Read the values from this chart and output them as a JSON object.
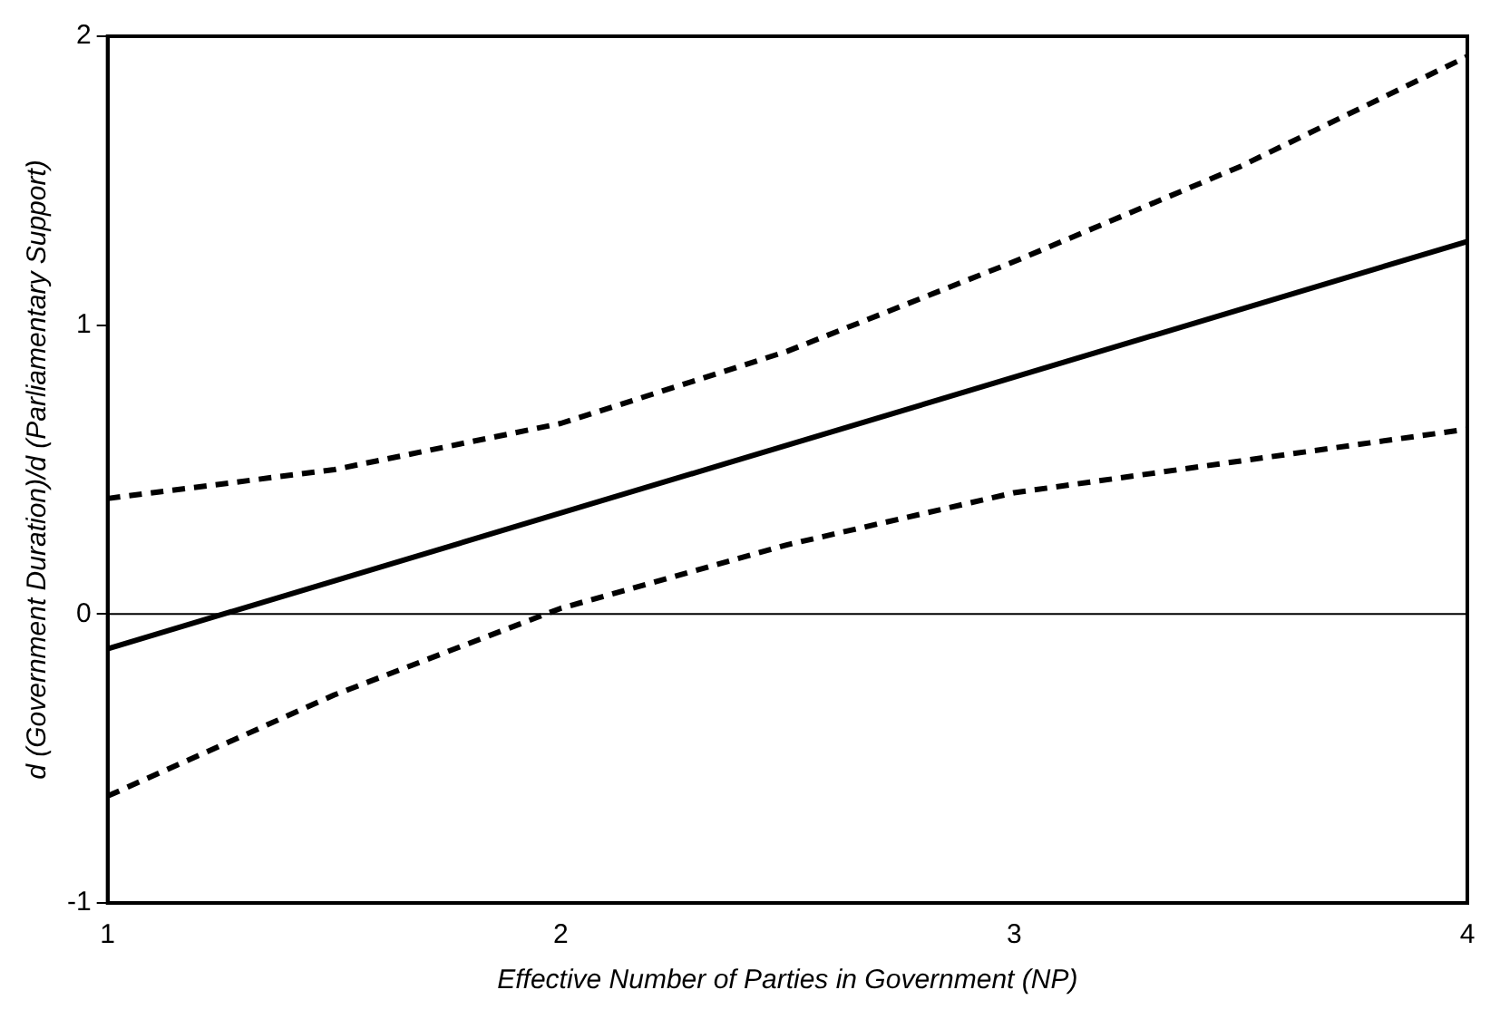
{
  "chart_data": {
    "type": "line",
    "xlabel": "Effective Number of Parties in Government (NP)",
    "ylabel": "d (Government Duration)/d (Parliamentary Support)",
    "xlim": [
      1,
      4
    ],
    "xticks": [
      1,
      2,
      3,
      4
    ],
    "ylim": [
      -1,
      2
    ],
    "yticks": [
      -1,
      0,
      1,
      2
    ],
    "grid": false,
    "legend": false,
    "marker": "none",
    "series": [
      {
        "x": [
          1,
          4
        ],
        "values": [
          -0.12,
          1.29
        ],
        "color": "#000000",
        "line_style": "solid"
      },
      {
        "x": [
          1,
          1.5,
          2,
          2.5,
          3,
          3.5,
          4
        ],
        "values": [
          0.4,
          0.5,
          0.66,
          0.91,
          1.22,
          1.55,
          1.93
        ],
        "color": "#000000",
        "line_style": "dashed"
      },
      {
        "x": [
          1,
          1.5,
          2,
          2.5,
          3,
          3.5,
          4
        ],
        "values": [
          -0.63,
          -0.28,
          0.02,
          0.24,
          0.42,
          0.53,
          0.64
        ],
        "color": "#000000",
        "line_style": "dashed"
      }
    ],
    "ref_lines": [
      {
        "axis": "y",
        "value": 0,
        "color": "#000000"
      }
    ]
  }
}
